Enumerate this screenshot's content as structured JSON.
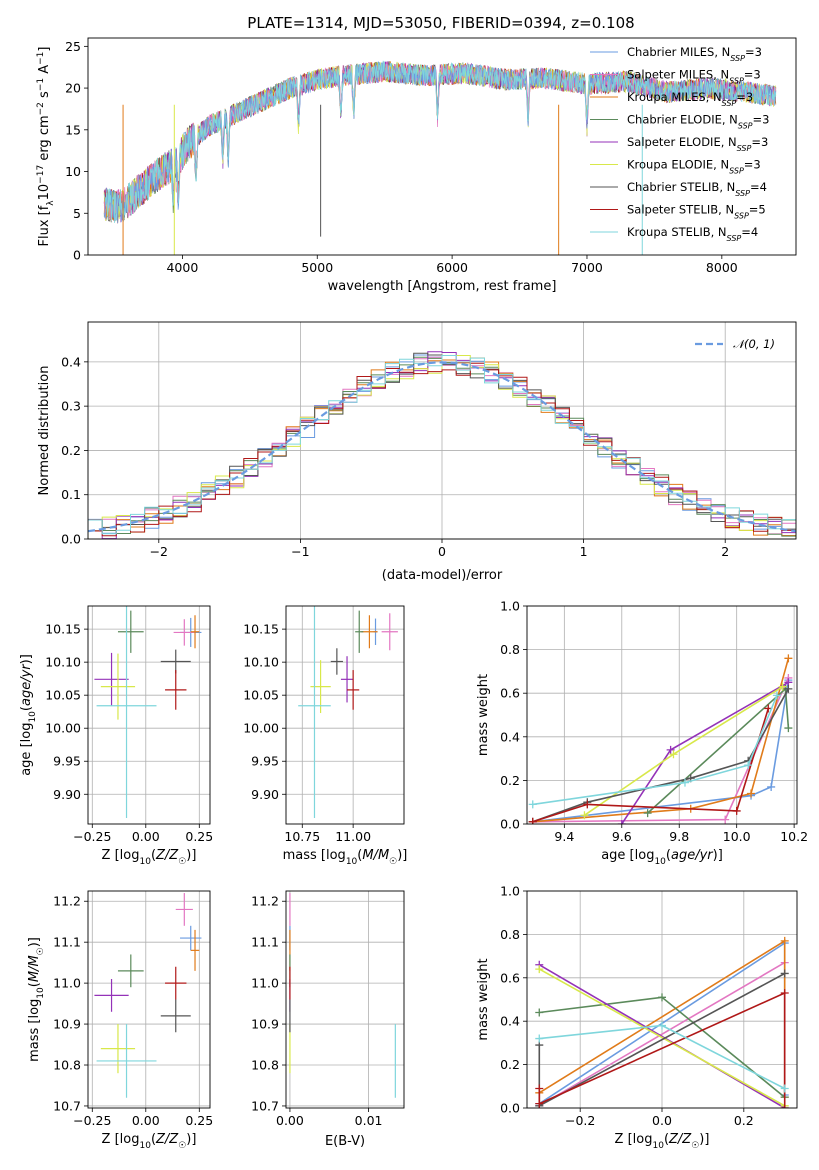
{
  "figure": {
    "title": "PLATE=1314, MJD=53050, FIBERID=0394, z=0.108"
  },
  "colors": {
    "grid": "#b0b0b0",
    "normal_line": "#6a9be0"
  },
  "models": [
    {
      "name": "Chabrier MILES",
      "nssp": "3",
      "color": "#6a9be0"
    },
    {
      "name": "Salpeter MILES",
      "nssp": "3",
      "color": "#e377c2"
    },
    {
      "name": "Kroupa MILES",
      "nssp": "3",
      "color": "#e07b1a"
    },
    {
      "name": "Chabrier ELODIE",
      "nssp": "3",
      "color": "#5b8a5b"
    },
    {
      "name": "Salpeter ELODIE",
      "nssp": "3",
      "color": "#9432b8"
    },
    {
      "name": "Kroupa ELODIE",
      "nssp": "3",
      "color": "#d8e84a"
    },
    {
      "name": "Chabrier STELIB",
      "nssp": "4",
      "color": "#555555"
    },
    {
      "name": "Salpeter STELIB",
      "nssp": "5",
      "color": "#b01818"
    },
    {
      "name": "Kroupa STELIB",
      "nssp": "4",
      "color": "#7fd6dc"
    }
  ],
  "chart_data": [
    {
      "id": "spectrum",
      "type": "line",
      "title": "PLATE=1314, MJD=53050, FIBERID=0394, z=0.108",
      "xlabel": "wavelength [Angstrom, rest frame]",
      "ylabel": "Flux [f_λ 10^-17 erg cm^-2 s^-1 A^-1]",
      "xlim": [
        3300,
        8550
      ],
      "ylim": [
        0,
        26
      ],
      "xticks": [
        4000,
        5000,
        6000,
        7000,
        8000
      ],
      "yticks": [
        0,
        5,
        10,
        15,
        20,
        25
      ],
      "grid": false,
      "legend": "right",
      "continuum": {
        "x": [
          3420,
          3550,
          3700,
          3850,
          3950,
          4050,
          4200,
          4400,
          4600,
          4800,
          5000,
          5200,
          5500,
          5800,
          6100,
          6400,
          6700,
          7000,
          7300,
          7600,
          7900,
          8200,
          8400
        ],
        "y": [
          6,
          5.8,
          8,
          10,
          11,
          13.5,
          15.5,
          17,
          18.5,
          20,
          21,
          21.5,
          22,
          21.5,
          21.8,
          21,
          21.2,
          20.5,
          20.8,
          19.5,
          20,
          19.5,
          19
        ]
      }
    },
    {
      "id": "residual-hist",
      "type": "histogram",
      "xlabel": "(data-model)/error",
      "ylabel": "Normed distribution",
      "xlim": [
        -2.5,
        2.5
      ],
      "ylim": [
        0,
        0.49
      ],
      "xticks": [
        -2,
        -1,
        0,
        1,
        2
      ],
      "yticks": [
        0.0,
        0.1,
        0.2,
        0.3,
        0.4
      ],
      "grid": true,
      "legend": "top-right",
      "reference": {
        "name": "𝒩(0, 1)",
        "mean": 0,
        "sigma": 1
      }
    },
    {
      "id": "age-vs-z",
      "type": "scatter",
      "xlabel": "Z [log10(Z/Z☉)]",
      "ylabel": "age  [log10(age/yr)]",
      "xlim": [
        -0.27,
        0.3
      ],
      "ylim": [
        9.855,
        10.185
      ],
      "xticks": [
        -0.25,
        0.0,
        0.25
      ],
      "yticks": [
        9.9,
        9.95,
        10.0,
        10.05,
        10.1,
        10.15
      ],
      "grid": true,
      "points": [
        {
          "x": 0.21,
          "y": 10.145,
          "ex": 0.05,
          "ey": 0.022
        },
        {
          "x": 0.18,
          "y": 10.145,
          "ex": 0.05,
          "ey": 0.02
        },
        {
          "x": 0.23,
          "y": 10.146,
          "ex": 0.02,
          "ey": 0.025
        },
        {
          "x": -0.07,
          "y": 10.146,
          "ex": 0.06,
          "ey": 0.032
        },
        {
          "x": -0.16,
          "y": 10.074,
          "ex": 0.08,
          "ey": 0.04
        },
        {
          "x": -0.13,
          "y": 10.063,
          "ex": 0.08,
          "ey": 0.05
        },
        {
          "x": 0.14,
          "y": 10.101,
          "ex": 0.07,
          "ey": 0.018
        },
        {
          "x": 0.14,
          "y": 10.058,
          "ex": 0.05,
          "ey": 0.03
        },
        {
          "x": -0.09,
          "y": 10.034,
          "ex": 0.14,
          "ey": 0.17
        }
      ]
    },
    {
      "id": "age-vs-mass",
      "type": "scatter",
      "xlabel": "mass [log10(M/M☉)]",
      "ylabel": "",
      "xlim": [
        10.67,
        11.25
      ],
      "ylim": [
        9.855,
        10.185
      ],
      "xticks": [
        10.75,
        11.0
      ],
      "yticks": [
        9.9,
        9.95,
        10.0,
        10.05,
        10.1,
        10.15
      ],
      "grid": true,
      "points": [
        {
          "x": 11.11,
          "y": 10.146,
          "ex": 0.01,
          "ey": 0.02
        },
        {
          "x": 11.18,
          "y": 10.146,
          "ex": 0.04,
          "ey": 0.028
        },
        {
          "x": 11.08,
          "y": 10.146,
          "ex": 0.04,
          "ey": 0.025
        },
        {
          "x": 11.03,
          "y": 10.146,
          "ex": 0.02,
          "ey": 0.032
        },
        {
          "x": 10.97,
          "y": 10.074,
          "ex": 0.03,
          "ey": 0.035
        },
        {
          "x": 10.84,
          "y": 10.063,
          "ex": 0.05,
          "ey": 0.04
        },
        {
          "x": 10.92,
          "y": 10.101,
          "ex": 0.03,
          "ey": 0.02
        },
        {
          "x": 11.0,
          "y": 10.058,
          "ex": 0.03,
          "ey": 0.03
        },
        {
          "x": 10.81,
          "y": 10.034,
          "ex": 0.08,
          "ey": 0.17
        }
      ]
    },
    {
      "id": "weight-vs-age",
      "type": "line",
      "xlabel": "age  [log10(age/yr)]",
      "ylabel": "mass weight",
      "xlim": [
        9.27,
        10.21
      ],
      "ylim": [
        0,
        1
      ],
      "xticks": [
        9.4,
        9.6,
        9.8,
        10.0,
        10.2
      ],
      "yticks": [
        0.0,
        0.2,
        0.4,
        0.6,
        0.8,
        1.0
      ],
      "grid": true,
      "series": [
        {
          "x": [
            9.29,
            10.05,
            10.12,
            10.18
          ],
          "y": [
            0.01,
            0.13,
            0.17,
            0.66
          ]
        },
        {
          "x": [
            9.29,
            9.96,
            10.18
          ],
          "y": [
            0.01,
            0.02,
            0.67
          ]
        },
        {
          "x": [
            9.29,
            9.84,
            10.05,
            10.18
          ],
          "y": [
            0.01,
            0.07,
            0.14,
            0.76
          ]
        },
        {
          "x": [
            9.69,
            10.17,
            10.18
          ],
          "y": [
            0.05,
            0.62,
            0.44
          ]
        },
        {
          "x": [
            9.6,
            9.77,
            10.18
          ],
          "y": [
            0.0,
            0.34,
            0.65
          ]
        },
        {
          "x": [
            9.47,
            9.78,
            10.16
          ],
          "y": [
            0.04,
            0.32,
            0.63
          ]
        },
        {
          "x": [
            9.29,
            9.48,
            9.84,
            10.04,
            10.18
          ],
          "y": [
            0.01,
            0.1,
            0.21,
            0.29,
            0.62
          ]
        },
        {
          "x": [
            9.29,
            9.48,
            10.0,
            10.11
          ],
          "y": [
            0.01,
            0.09,
            0.06,
            0.53
          ]
        },
        {
          "x": [
            9.29,
            9.82,
            10.04,
            10.14
          ],
          "y": [
            0.09,
            0.19,
            0.27,
            0.59
          ]
        }
      ]
    },
    {
      "id": "mass-vs-z",
      "type": "scatter",
      "xlabel": "Z [log10(Z/Z☉)]",
      "ylabel": "mass [log10(M/M☉)]",
      "xlim": [
        -0.27,
        0.3
      ],
      "ylim": [
        10.695,
        11.225
      ],
      "xticks": [
        -0.25,
        0.0,
        0.25
      ],
      "yticks": [
        10.7,
        10.8,
        10.9,
        11.0,
        11.1,
        11.2
      ],
      "grid": true,
      "points": [
        {
          "x": 0.21,
          "y": 11.11,
          "ex": 0.05,
          "ey": 0.03
        },
        {
          "x": 0.18,
          "y": 11.18,
          "ex": 0.04,
          "ey": 0.04
        },
        {
          "x": 0.23,
          "y": 11.08,
          "ex": 0.02,
          "ey": 0.05
        },
        {
          "x": -0.07,
          "y": 11.03,
          "ex": 0.06,
          "ey": 0.04
        },
        {
          "x": -0.16,
          "y": 10.97,
          "ex": 0.08,
          "ey": 0.04
        },
        {
          "x": -0.13,
          "y": 10.84,
          "ex": 0.08,
          "ey": 0.06
        },
        {
          "x": 0.14,
          "y": 10.92,
          "ex": 0.07,
          "ey": 0.04
        },
        {
          "x": 0.14,
          "y": 11.0,
          "ex": 0.05,
          "ey": 0.04
        },
        {
          "x": -0.09,
          "y": 10.81,
          "ex": 0.14,
          "ey": 0.09
        }
      ]
    },
    {
      "id": "mass-vs-ebv",
      "type": "scatter",
      "xlabel": "E(B-V)",
      "ylabel": "",
      "xlim": [
        -0.0005,
        0.0145
      ],
      "ylim": [
        10.695,
        11.225
      ],
      "xticks": [
        0.0,
        0.01
      ],
      "yticks": [
        10.7,
        10.8,
        10.9,
        11.0,
        11.1,
        11.2
      ],
      "grid": true,
      "points": [
        {
          "x": 0.0,
          "y": 11.11,
          "ex": 0,
          "ey": 0.03
        },
        {
          "x": 0.0,
          "y": 11.18,
          "ex": 0,
          "ey": 0.04
        },
        {
          "x": 0.0,
          "y": 11.08,
          "ex": 0,
          "ey": 0.05
        },
        {
          "x": 0.0,
          "y": 11.03,
          "ex": 0,
          "ey": 0.04
        },
        {
          "x": 0.0,
          "y": 10.97,
          "ex": 0,
          "ey": 0.04
        },
        {
          "x": 0.0,
          "y": 10.84,
          "ex": 0,
          "ey": 0.06
        },
        {
          "x": 0.0,
          "y": 10.92,
          "ex": 0,
          "ey": 0.04
        },
        {
          "x": 0.0,
          "y": 11.0,
          "ex": 0,
          "ey": 0.04
        },
        {
          "x": 0.0134,
          "y": 10.81,
          "ex": 0,
          "ey": 0.09
        }
      ]
    },
    {
      "id": "weight-vs-z",
      "type": "line",
      "xlabel": "Z [log10(Z/Z☉)]",
      "ylabel": "mass weight",
      "xlim": [
        -0.33,
        0.33
      ],
      "ylim": [
        0,
        1
      ],
      "xticks": [
        -0.2,
        0.0,
        0.2
      ],
      "yticks": [
        0.0,
        0.2,
        0.4,
        0.6,
        0.8,
        1.0
      ],
      "grid": true,
      "series": [
        {
          "x": [
            -0.3,
            0.3,
            0.3
          ],
          "y": [
            0.02,
            0.76,
            0.06
          ]
        },
        {
          "x": [
            -0.3,
            0.3
          ],
          "y": [
            0.01,
            0.67
          ]
        },
        {
          "x": [
            -0.3,
            0.3,
            0.3
          ],
          "y": [
            0.07,
            0.77,
            0.05
          ]
        },
        {
          "x": [
            -0.3,
            0.0,
            0.3
          ],
          "y": [
            0.44,
            0.51,
            0.05
          ]
        },
        {
          "x": [
            -0.3,
            0.3
          ],
          "y": [
            0.66,
            0.0
          ]
        },
        {
          "x": [
            -0.3,
            0.3
          ],
          "y": [
            0.64,
            0.01
          ]
        },
        {
          "x": [
            -0.3,
            -0.3,
            0.3
          ],
          "y": [
            0.29,
            0.01,
            0.62
          ]
        },
        {
          "x": [
            -0.3,
            -0.3,
            0.3,
            0.3
          ],
          "y": [
            0.09,
            0.02,
            0.53,
            0.0
          ]
        },
        {
          "x": [
            -0.3,
            0.0,
            0.3
          ],
          "y": [
            0.32,
            0.38,
            0.09
          ]
        }
      ]
    }
  ]
}
